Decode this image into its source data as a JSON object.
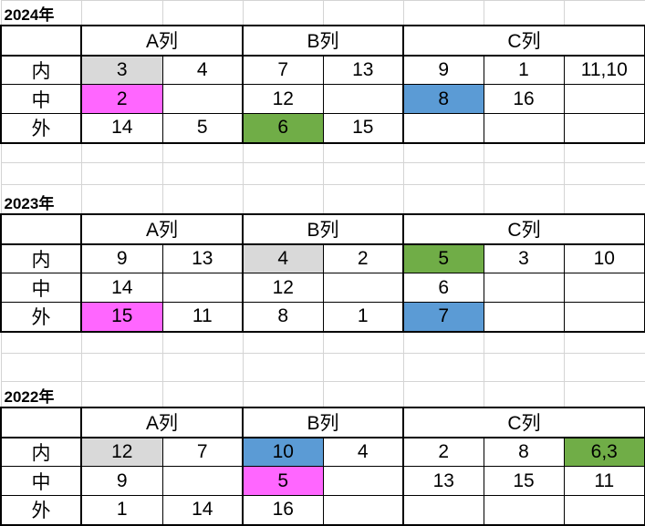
{
  "colors": {
    "gray": "#d9d9d9",
    "pink": "#ff66ff",
    "green": "#70ad47",
    "blue": "#5b9bd5"
  },
  "column_headers": [
    "A列",
    "B列",
    "C列"
  ],
  "row_labels": [
    "内",
    "中",
    "外"
  ],
  "blocks": [
    {
      "title": "2024年",
      "rows": [
        [
          {
            "v": "3",
            "c": "gray"
          },
          {
            "v": "4"
          },
          {
            "v": "7"
          },
          {
            "v": "13"
          },
          {
            "v": "9"
          },
          {
            "v": "1"
          },
          {
            "v": "11,10"
          }
        ],
        [
          {
            "v": "2",
            "c": "pink"
          },
          {
            "v": ""
          },
          {
            "v": "12"
          },
          {
            "v": ""
          },
          {
            "v": "8",
            "c": "blue"
          },
          {
            "v": "16"
          },
          {
            "v": ""
          }
        ],
        [
          {
            "v": "14"
          },
          {
            "v": "5"
          },
          {
            "v": "6",
            "c": "green"
          },
          {
            "v": "15"
          },
          {
            "v": ""
          },
          {
            "v": ""
          },
          {
            "v": ""
          }
        ]
      ]
    },
    {
      "title": "2023年",
      "rows": [
        [
          {
            "v": "9"
          },
          {
            "v": "13"
          },
          {
            "v": "4",
            "c": "gray"
          },
          {
            "v": "2"
          },
          {
            "v": "5",
            "c": "green"
          },
          {
            "v": "3"
          },
          {
            "v": "10"
          }
        ],
        [
          {
            "v": "14"
          },
          {
            "v": ""
          },
          {
            "v": "12"
          },
          {
            "v": ""
          },
          {
            "v": "6"
          },
          {
            "v": ""
          },
          {
            "v": ""
          }
        ],
        [
          {
            "v": "15",
            "c": "pink"
          },
          {
            "v": "11"
          },
          {
            "v": "8"
          },
          {
            "v": "1"
          },
          {
            "v": "7",
            "c": "blue"
          },
          {
            "v": ""
          },
          {
            "v": ""
          }
        ]
      ]
    },
    {
      "title": "2022年",
      "rows": [
        [
          {
            "v": "12",
            "c": "gray"
          },
          {
            "v": "7"
          },
          {
            "v": "10",
            "c": "blue"
          },
          {
            "v": "4"
          },
          {
            "v": "2"
          },
          {
            "v": "8"
          },
          {
            "v": "6,3",
            "c": "green"
          }
        ],
        [
          {
            "v": "9"
          },
          {
            "v": ""
          },
          {
            "v": "5",
            "c": "pink"
          },
          {
            "v": ""
          },
          {
            "v": "13"
          },
          {
            "v": "15"
          },
          {
            "v": "11"
          }
        ],
        [
          {
            "v": "1"
          },
          {
            "v": "14"
          },
          {
            "v": "16"
          },
          {
            "v": ""
          },
          {
            "v": ""
          },
          {
            "v": ""
          },
          {
            "v": ""
          }
        ]
      ]
    }
  ]
}
